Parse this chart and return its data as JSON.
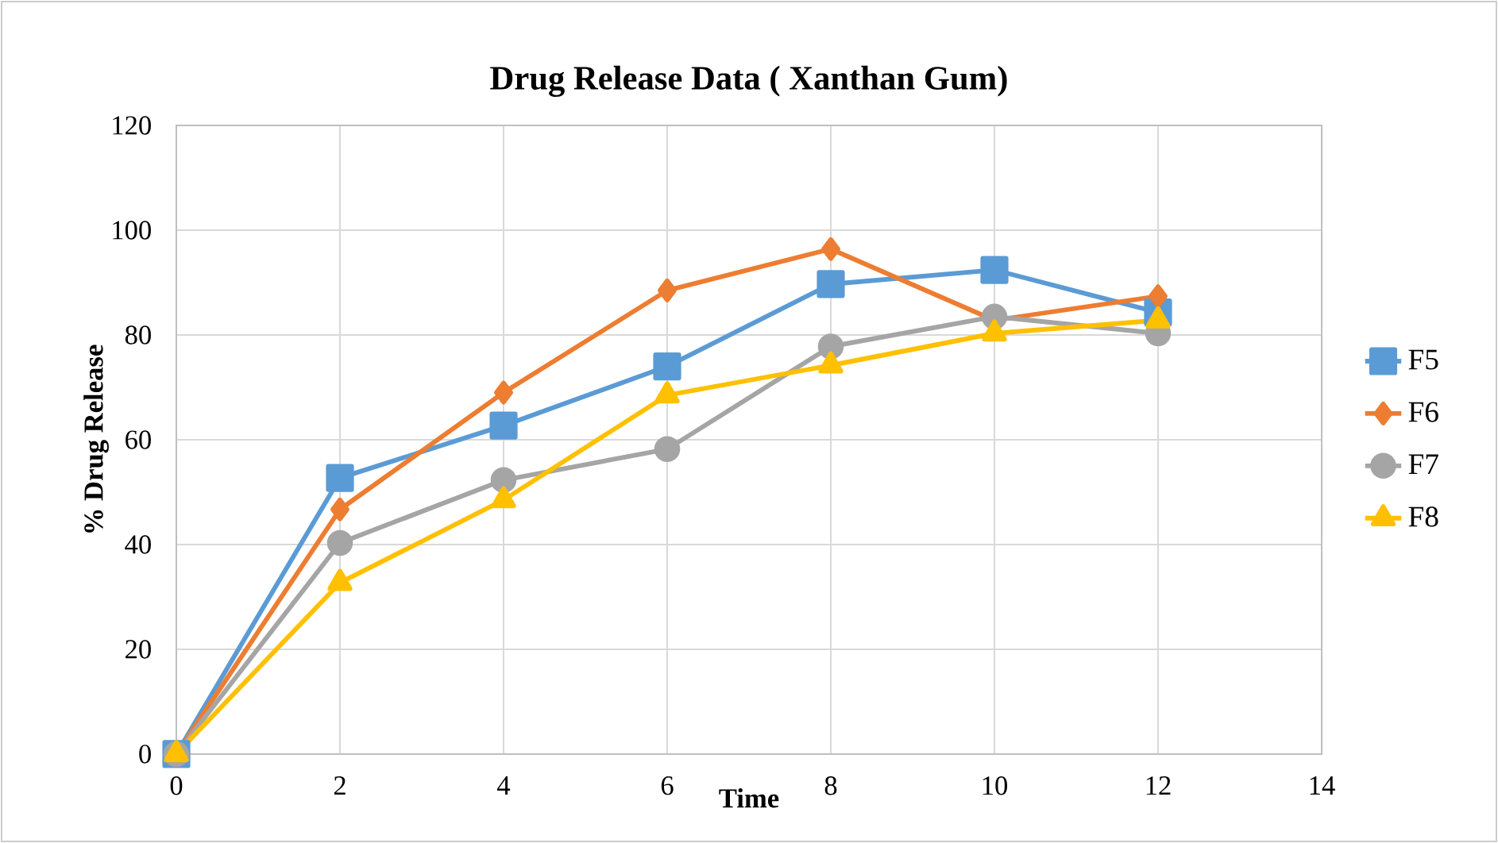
{
  "chart_data": {
    "type": "line",
    "title": "Drug Release Data ( Xanthan Gum)",
    "xlabel": "Time",
    "ylabel": "% Drug Release",
    "x": [
      0,
      2,
      4,
      6,
      8,
      10,
      12
    ],
    "series": [
      {
        "name": "F5",
        "color": "#5b9bd5",
        "marker": "square",
        "values": [
          0,
          52.7,
          62.7,
          74,
          89.7,
          92.4,
          84.3
        ]
      },
      {
        "name": "F6",
        "color": "#ed7d31",
        "marker": "diamond",
        "values": [
          0,
          46.7,
          69,
          88.5,
          96.4,
          82.8,
          87.4
        ]
      },
      {
        "name": "F7",
        "color": "#a5a5a5",
        "marker": "circle",
        "values": [
          0,
          40.3,
          52.3,
          58.2,
          77.8,
          83.5,
          80.3
        ]
      },
      {
        "name": "F8",
        "color": "#ffc000",
        "marker": "triangle",
        "values": [
          0,
          32.7,
          48.5,
          68.5,
          74.2,
          80.3,
          82.8
        ]
      }
    ],
    "xlim": [
      0,
      14
    ],
    "xticks": [
      0,
      2,
      4,
      6,
      8,
      10,
      12,
      14
    ],
    "ylim": [
      0,
      120
    ],
    "yticks": [
      0,
      20,
      40,
      60,
      80,
      100,
      120
    ],
    "grid": true,
    "legend": "right"
  }
}
